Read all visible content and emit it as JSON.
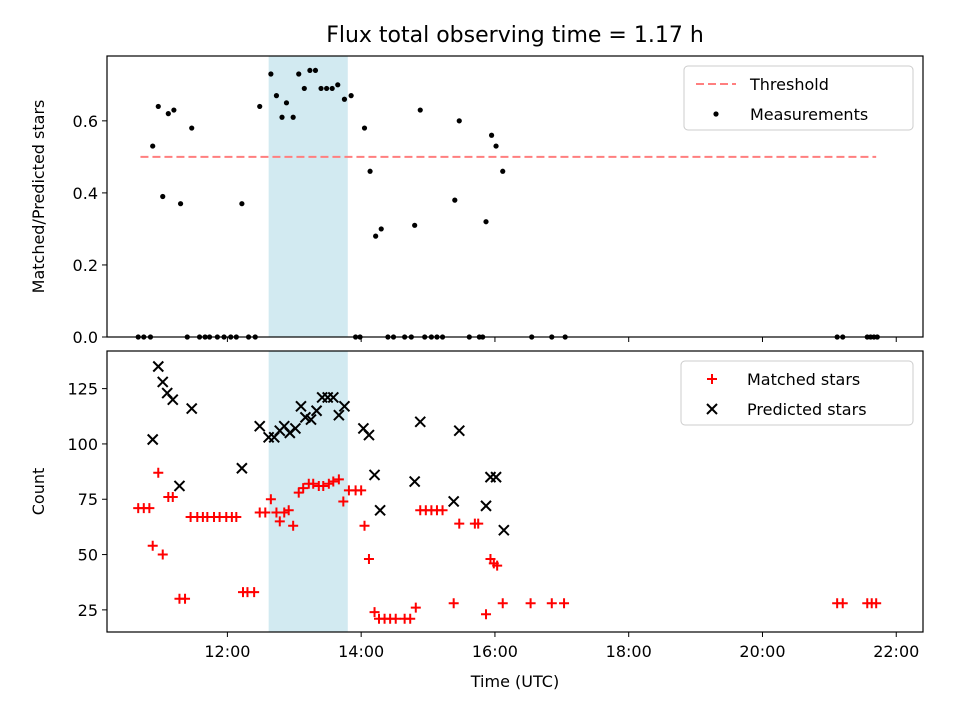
{
  "figure": {
    "title": "Flux total observing time = 1.17 h"
  },
  "colors": {
    "threshold": "#ff7f7f",
    "highlight": "#add8e6",
    "measurements": "#000000",
    "matched": "#ff0000",
    "predicted": "#000000"
  },
  "chart_data": [
    {
      "type": "scatter",
      "xlabel": "",
      "ylabel": "Matched/Predicted stars",
      "xlim": [
        "10:12",
        "22:24"
      ],
      "ylim": [
        0,
        0.78
      ],
      "yticks": [
        0.0,
        0.2,
        0.4,
        0.6
      ],
      "ytick_labels": [
        "0.0",
        "0.2",
        "0.4",
        "0.6"
      ],
      "highlight_span": [
        "12:37",
        "13:48"
      ],
      "legend": {
        "position": "upper-right",
        "entries": [
          "Threshold",
          "Measurements"
        ]
      },
      "threshold": {
        "name": "Threshold",
        "value": 0.5,
        "x": [
          "10:42",
          "21:42"
        ]
      },
      "series": [
        {
          "name": "Measurements",
          "marker": "dot",
          "points": [
            [
              "10:40",
              0
            ],
            [
              "10:45",
              0
            ],
            [
              "10:51",
              0
            ],
            [
              "10:53",
              0.53
            ],
            [
              "10:58",
              0.64
            ],
            [
              "11:02",
              0.39
            ],
            [
              "11:07",
              0.62
            ],
            [
              "11:12",
              0.63
            ],
            [
              "11:18",
              0.37
            ],
            [
              "11:24",
              0
            ],
            [
              "11:28",
              0.58
            ],
            [
              "11:35",
              0
            ],
            [
              "11:40",
              0
            ],
            [
              "11:44",
              0
            ],
            [
              "11:51",
              0
            ],
            [
              "11:57",
              0
            ],
            [
              "12:03",
              0
            ],
            [
              "12:08",
              0
            ],
            [
              "12:13",
              0.37
            ],
            [
              "12:19",
              0
            ],
            [
              "12:25",
              0
            ],
            [
              "12:29",
              0.64
            ],
            [
              "12:39",
              0.73
            ],
            [
              "12:44",
              0.67
            ],
            [
              "12:49",
              0.61
            ],
            [
              "12:53",
              0.65
            ],
            [
              "12:59",
              0.61
            ],
            [
              "13:04",
              0.73
            ],
            [
              "13:09",
              0.69
            ],
            [
              "13:14",
              0.74
            ],
            [
              "13:19",
              0.74
            ],
            [
              "13:24",
              0.69
            ],
            [
              "13:29",
              0.69
            ],
            [
              "13:34",
              0.69
            ],
            [
              "13:39",
              0.7
            ],
            [
              "13:45",
              0.66
            ],
            [
              "13:51",
              0.67
            ],
            [
              "13:55",
              0
            ],
            [
              "13:59",
              0
            ],
            [
              "14:03",
              0.58
            ],
            [
              "14:08",
              0.46
            ],
            [
              "14:13",
              0.28
            ],
            [
              "14:18",
              0.3
            ],
            [
              "14:24",
              0
            ],
            [
              "14:29",
              0
            ],
            [
              "14:39",
              0
            ],
            [
              "14:45",
              0
            ],
            [
              "14:48",
              0.31
            ],
            [
              "14:53",
              0.63
            ],
            [
              "14:57",
              0
            ],
            [
              "15:03",
              0
            ],
            [
              "15:08",
              0
            ],
            [
              "15:13",
              0
            ],
            [
              "15:24",
              0.38
            ],
            [
              "15:28",
              0.6
            ],
            [
              "15:37",
              0
            ],
            [
              "15:46",
              0
            ],
            [
              "15:49",
              0
            ],
            [
              "15:52",
              0.32
            ],
            [
              "15:57",
              0.56
            ],
            [
              "16:01",
              0.53
            ],
            [
              "16:07",
              0.46
            ],
            [
              "16:33",
              0
            ],
            [
              "16:51",
              0
            ],
            [
              "17:03",
              0
            ],
            [
              "21:07",
              0
            ],
            [
              "21:12",
              0
            ],
            [
              "21:34",
              0
            ],
            [
              "21:37",
              0
            ],
            [
              "21:40",
              0
            ],
            [
              "21:43",
              0
            ]
          ]
        }
      ]
    },
    {
      "type": "scatter",
      "xlabel": "Time (UTC)",
      "ylabel": "Count",
      "xlim": [
        "10:12",
        "22:24"
      ],
      "ylim": [
        15,
        142
      ],
      "yticks": [
        25,
        50,
        75,
        100,
        125
      ],
      "ytick_labels": [
        "25",
        "50",
        "75",
        "100",
        "125"
      ],
      "xticks": [
        "12:00",
        "14:00",
        "16:00",
        "18:00",
        "20:00",
        "22:00"
      ],
      "xtick_labels": [
        "12:00",
        "14:00",
        "16:00",
        "18:00",
        "20:00",
        "22:00"
      ],
      "highlight_span": [
        "12:37",
        "13:48"
      ],
      "legend": {
        "position": "upper-right",
        "entries": [
          "Matched stars",
          "Predicted stars"
        ]
      },
      "series": [
        {
          "name": "Matched stars",
          "marker": "plus",
          "points": [
            [
              "10:40",
              71
            ],
            [
              "10:45",
              71
            ],
            [
              "10:50",
              71
            ],
            [
              "10:53",
              54
            ],
            [
              "10:58",
              87
            ],
            [
              "11:02",
              50
            ],
            [
              "11:07",
              76
            ],
            [
              "11:11",
              76
            ],
            [
              "11:17",
              30
            ],
            [
              "11:22",
              30
            ],
            [
              "11:27",
              67
            ],
            [
              "11:33",
              67
            ],
            [
              "11:38",
              67
            ],
            [
              "11:42",
              67
            ],
            [
              "11:48",
              67
            ],
            [
              "11:53",
              67
            ],
            [
              "11:59",
              67
            ],
            [
              "12:04",
              67
            ],
            [
              "12:08",
              67
            ],
            [
              "12:14",
              33
            ],
            [
              "12:18",
              33
            ],
            [
              "12:24",
              33
            ],
            [
              "12:29",
              69
            ],
            [
              "12:34",
              69
            ],
            [
              "12:39",
              75
            ],
            [
              "12:44",
              69
            ],
            [
              "12:47",
              65
            ],
            [
              "12:51",
              69
            ],
            [
              "12:55",
              70
            ],
            [
              "12:59",
              63
            ],
            [
              "13:04",
              78
            ],
            [
              "13:08",
              80
            ],
            [
              "13:13",
              82
            ],
            [
              "13:17",
              82
            ],
            [
              "13:22",
              81
            ],
            [
              "13:26",
              81
            ],
            [
              "13:31",
              82
            ],
            [
              "13:35",
              83
            ],
            [
              "13:40",
              84
            ],
            [
              "13:44",
              74
            ],
            [
              "13:49",
              79
            ],
            [
              "13:55",
              79
            ],
            [
              "14:00",
              79
            ],
            [
              "14:03",
              63
            ],
            [
              "14:07",
              48
            ],
            [
              "14:12",
              24
            ],
            [
              "14:16",
              21
            ],
            [
              "14:21",
              21
            ],
            [
              "14:26",
              21
            ],
            [
              "14:31",
              21
            ],
            [
              "14:39",
              21
            ],
            [
              "14:44",
              21
            ],
            [
              "14:49",
              26
            ],
            [
              "14:53",
              70
            ],
            [
              "14:58",
              70
            ],
            [
              "15:03",
              70
            ],
            [
              "15:08",
              70
            ],
            [
              "15:13",
              70
            ],
            [
              "15:23",
              28
            ],
            [
              "15:28",
              64
            ],
            [
              "15:42",
              64
            ],
            [
              "15:45",
              64
            ],
            [
              "15:52",
              23
            ],
            [
              "15:56",
              48
            ],
            [
              "15:59",
              46
            ],
            [
              "16:02",
              45
            ],
            [
              "16:07",
              28
            ],
            [
              "16:32",
              28
            ],
            [
              "16:51",
              28
            ],
            [
              "17:02",
              28
            ],
            [
              "21:07",
              28
            ],
            [
              "21:12",
              28
            ],
            [
              "21:34",
              28
            ],
            [
              "21:38",
              28
            ],
            [
              "21:42",
              28
            ]
          ]
        },
        {
          "name": "Predicted stars",
          "marker": "x",
          "points": [
            [
              "10:53",
              102
            ],
            [
              "10:58",
              135
            ],
            [
              "11:02",
              128
            ],
            [
              "11:06",
              123
            ],
            [
              "11:11",
              120
            ],
            [
              "11:17",
              81
            ],
            [
              "11:28",
              116
            ],
            [
              "12:13",
              89
            ],
            [
              "12:29",
              108
            ],
            [
              "12:37",
              103
            ],
            [
              "12:42",
              103
            ],
            [
              "12:47",
              106
            ],
            [
              "12:51",
              108
            ],
            [
              "12:56",
              105
            ],
            [
              "13:01",
              107
            ],
            [
              "13:06",
              117
            ],
            [
              "13:10",
              112
            ],
            [
              "13:15",
              111
            ],
            [
              "13:20",
              115
            ],
            [
              "13:25",
              121
            ],
            [
              "13:30",
              121
            ],
            [
              "13:35",
              121
            ],
            [
              "13:40",
              113
            ],
            [
              "13:45",
              117
            ],
            [
              "14:02",
              107
            ],
            [
              "14:07",
              104
            ],
            [
              "14:12",
              86
            ],
            [
              "14:17",
              70
            ],
            [
              "14:48",
              83
            ],
            [
              "14:53",
              110
            ],
            [
              "15:23",
              74
            ],
            [
              "15:28",
              106
            ],
            [
              "15:52",
              72
            ],
            [
              "15:56",
              85
            ],
            [
              "16:01",
              85
            ],
            [
              "16:08",
              61
            ]
          ]
        }
      ]
    }
  ]
}
